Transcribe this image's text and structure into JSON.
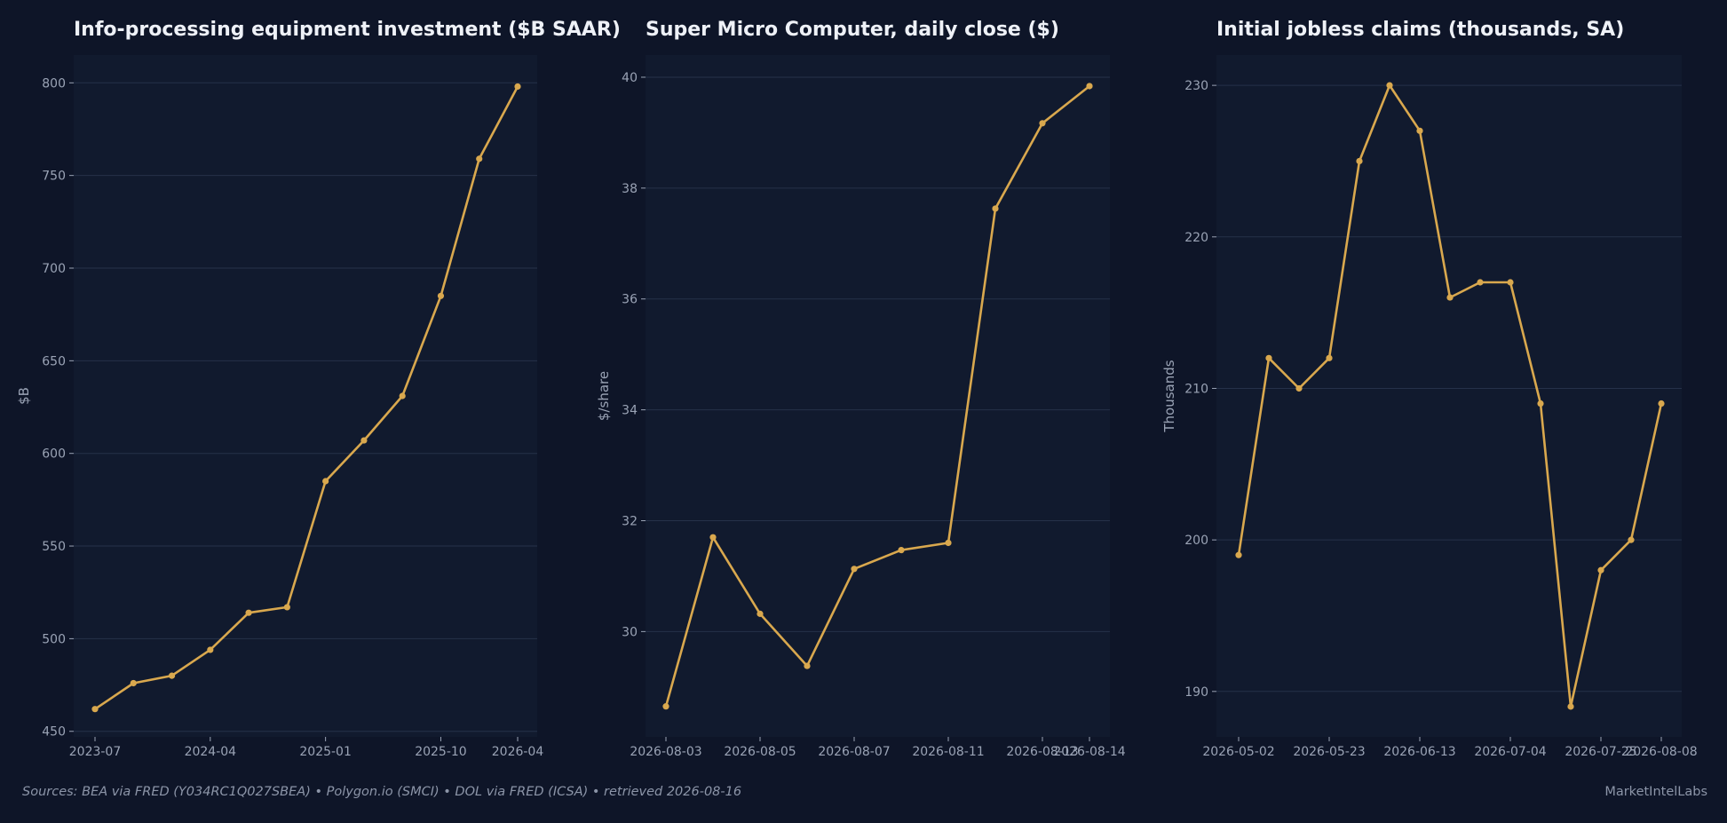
{
  "colors": {
    "page_background": "#0e1528",
    "plot_background": "#111a2e",
    "grid": "#263149",
    "series": "#d9a84e",
    "tick_text": "#9aa3b5",
    "title_text": "#eef1f7"
  },
  "chart_data": [
    {
      "type": "line",
      "title": "Info-processing equipment investment ($B SAAR)",
      "xlabel": "",
      "ylabel": "$B",
      "grid": true,
      "ylim": [
        447,
        815
      ],
      "yticks": [
        450,
        500,
        550,
        600,
        650,
        700,
        750,
        800
      ],
      "x_tick_labels": [
        "2023-07",
        "2024-04",
        "2025-01",
        "2025-10",
        "2026-04"
      ],
      "x_tick_index": [
        0,
        3,
        6,
        9,
        11
      ],
      "x": [
        "2023-07",
        "2023-10",
        "2024-01",
        "2024-04",
        "2024-07",
        "2024-10",
        "2025-01",
        "2025-04",
        "2025-07",
        "2025-10",
        "2026-01",
        "2026-04"
      ],
      "values": [
        462,
        476,
        480,
        494,
        514,
        517,
        585,
        607,
        631,
        685,
        759,
        798
      ]
    },
    {
      "type": "line",
      "title": "Super Micro Computer, daily close ($)",
      "xlabel": "",
      "ylabel": "$/share",
      "grid": true,
      "ylim": [
        28.1,
        40.4
      ],
      "yticks": [
        30,
        32,
        34,
        36,
        38,
        40
      ],
      "x_tick_labels": [
        "2026-08-03",
        "2026-08-05",
        "2026-08-07",
        "2026-08-11",
        "2026-08-13",
        "2026-08-14"
      ],
      "x_tick_index": [
        0,
        2,
        4,
        6,
        8,
        9
      ],
      "x": [
        "2026-08-03",
        "2026-08-04",
        "2026-08-05",
        "2026-08-06",
        "2026-08-07",
        "2026-08-10",
        "2026-08-11",
        "2026-08-12",
        "2026-08-13",
        "2026-08-14"
      ],
      "values": [
        28.65,
        31.7,
        30.32,
        29.38,
        31.13,
        31.47,
        31.6,
        37.63,
        39.17,
        39.84
      ]
    },
    {
      "type": "line",
      "title": "Initial jobless claims (thousands, SA)",
      "xlabel": "",
      "ylabel": "Thousands",
      "grid": true,
      "ylim": [
        187.0,
        232.0
      ],
      "yticks": [
        190,
        200,
        210,
        220,
        230
      ],
      "x_tick_labels": [
        "2026-05-02",
        "2026-05-23",
        "2026-06-13",
        "2026-07-04",
        "2026-07-25",
        "2026-08-08"
      ],
      "x_tick_index": [
        0,
        3,
        6,
        9,
        12,
        14
      ],
      "x": [
        "2026-05-02",
        "2026-05-09",
        "2026-05-16",
        "2026-05-23",
        "2026-05-30",
        "2026-06-06",
        "2026-06-13",
        "2026-06-20",
        "2026-06-27",
        "2026-07-04",
        "2026-07-11",
        "2026-07-18",
        "2026-07-25",
        "2026-08-01",
        "2026-08-08"
      ],
      "values": [
        199,
        212,
        210,
        212,
        225,
        230,
        227,
        216,
        217,
        217,
        209,
        189,
        198,
        200,
        209
      ]
    }
  ],
  "footer": {
    "sources": "Sources: BEA via FRED (Y034RC1Q027SBEA)  •  Polygon.io (SMCI)  •  DOL via FRED (ICSA)  •  retrieved 2026-08-16",
    "brand": "MarketIntelLabs"
  }
}
